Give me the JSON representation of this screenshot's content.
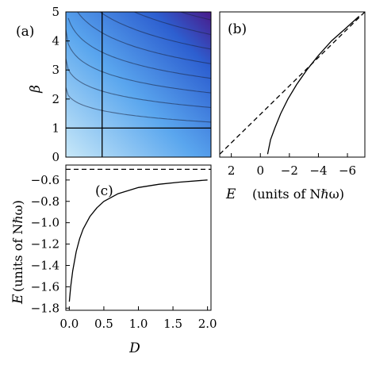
{
  "chart_data": [
    {
      "panel": "(a)",
      "type": "heatmap",
      "ylabel": "β",
      "xlim": [
        0,
        2
      ],
      "ylim": [
        0,
        5
      ],
      "yticks": [
        "0",
        "1",
        "2",
        "3",
        "4",
        "5"
      ],
      "reference_lines": {
        "vertical_x": 0.5,
        "horizontal_y": 1
      },
      "colormap": [
        "#c8e8f8",
        "#5aa6ee",
        "#2d5fd0",
        "#4a1a8a"
      ],
      "contour_levels": [
        -1.0,
        -1.5,
        -2.0,
        -2.5,
        -3.0,
        -3.5,
        -4.0,
        -4.5,
        -5.0,
        -5.5
      ]
    },
    {
      "panel": "(b)",
      "type": "line",
      "xlabel": "E",
      "xunit": "(units of Nℏω)",
      "xticks": [
        "2",
        "0",
        "-2",
        "-4",
        "-6"
      ],
      "xlim": [
        2.8,
        -7.2
      ],
      "ylim": [
        0,
        5
      ],
      "series": [
        {
          "style": "solid",
          "x": [
            -0.5,
            -0.7,
            -1.0,
            -1.4,
            -1.9,
            -2.5,
            -3.2,
            -4.0,
            -4.9,
            -5.8,
            -6.8
          ],
          "y": [
            0.1,
            0.6,
            1.0,
            1.5,
            2.0,
            2.5,
            3.0,
            3.5,
            4.0,
            4.4,
            4.85
          ]
        },
        {
          "style": "dashed",
          "x": [
            2.8,
            -7.2
          ],
          "y": [
            0.1,
            5.0
          ]
        }
      ]
    },
    {
      "panel": "(c)",
      "type": "line",
      "xlabel": "D",
      "ylabel": "E",
      "yunit": "(units of Nℏω)",
      "xticks": [
        "0.0",
        "0.5",
        "1.0",
        "1.5",
        "2.0"
      ],
      "yticks": [
        "-0.6",
        "-0.8",
        "-1.0",
        "-1.2",
        "-1.4",
        "-1.6",
        "-1.8"
      ],
      "xlim": [
        -0.05,
        2.05
      ],
      "ylim": [
        -1.82,
        -0.46
      ],
      "series": [
        {
          "style": "solid",
          "x": [
            0.0,
            0.02,
            0.05,
            0.1,
            0.15,
            0.2,
            0.3,
            0.4,
            0.5,
            0.7,
            1.0,
            1.3,
            1.6,
            2.0
          ],
          "y": [
            -1.74,
            -1.6,
            -1.45,
            -1.27,
            -1.15,
            -1.06,
            -0.94,
            -0.86,
            -0.8,
            -0.73,
            -0.67,
            -0.64,
            -0.62,
            -0.6
          ]
        },
        {
          "style": "dashed",
          "x": [
            -0.05,
            2.05
          ],
          "y": [
            -0.5,
            -0.5
          ]
        }
      ]
    }
  ]
}
